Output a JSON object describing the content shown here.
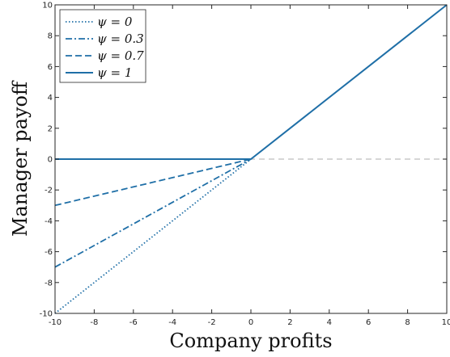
{
  "chart_data": {
    "type": "line",
    "xlabel": "Company profits",
    "ylabel": "Manager payoff",
    "xlim": [
      -10,
      10
    ],
    "ylim": [
      -10,
      10
    ],
    "xticks": [
      -10,
      -8,
      -6,
      -4,
      -2,
      0,
      2,
      4,
      6,
      8,
      10
    ],
    "yticks": [
      -10,
      -8,
      -6,
      -4,
      -2,
      0,
      2,
      4,
      6,
      8,
      10
    ],
    "grid": false,
    "legend_position": "top-left",
    "color": "#1f6fa7",
    "reference_line": {
      "y": 0,
      "style": "dashed",
      "color": "#bdbdbd"
    },
    "series": [
      {
        "name": "ψ = 0",
        "style": "dotted",
        "x": [
          -10,
          0
        ],
        "y": [
          -10,
          0
        ]
      },
      {
        "name": "ψ = 0.3",
        "style": "dashdot",
        "x": [
          -10,
          0
        ],
        "y": [
          -7,
          0
        ]
      },
      {
        "name": "ψ = 0.7",
        "style": "dashed",
        "x": [
          -10,
          0
        ],
        "y": [
          -3,
          0
        ]
      },
      {
        "name": "ψ = 1",
        "style": "solid",
        "x": [
          -10,
          0,
          10
        ],
        "y": [
          0,
          0,
          10
        ]
      }
    ]
  }
}
